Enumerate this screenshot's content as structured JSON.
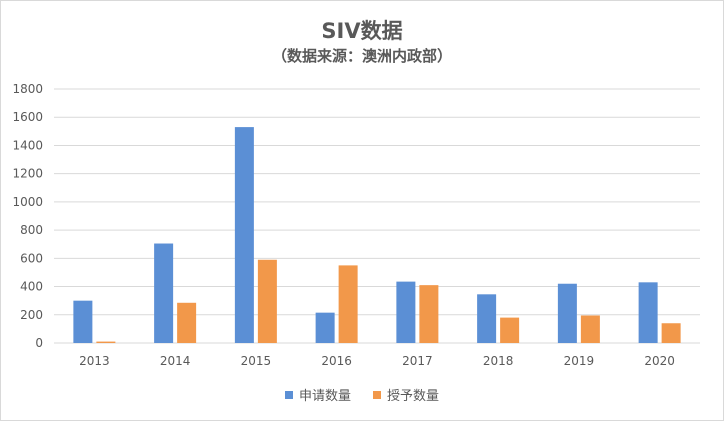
{
  "chart_data": {
    "type": "bar",
    "title": "SIV数据",
    "subtitle": "（数据来源：澳洲内政部）",
    "categories": [
      "2013",
      "2014",
      "2015",
      "2016",
      "2017",
      "2018",
      "2019",
      "2020"
    ],
    "series": [
      {
        "name": "申请数量",
        "color": "#5b8fd5",
        "values": [
          300,
          705,
          1530,
          215,
          435,
          345,
          420,
          430
        ]
      },
      {
        "name": "授予数量",
        "color": "#f2984a",
        "values": [
          10,
          285,
          590,
          550,
          410,
          180,
          195,
          140
        ]
      }
    ],
    "ylim": [
      0,
      1800
    ],
    "yticks": [
      0,
      200,
      400,
      600,
      800,
      1000,
      1200,
      1400,
      1600,
      1800
    ],
    "grid": true,
    "legend_position": "bottom"
  }
}
